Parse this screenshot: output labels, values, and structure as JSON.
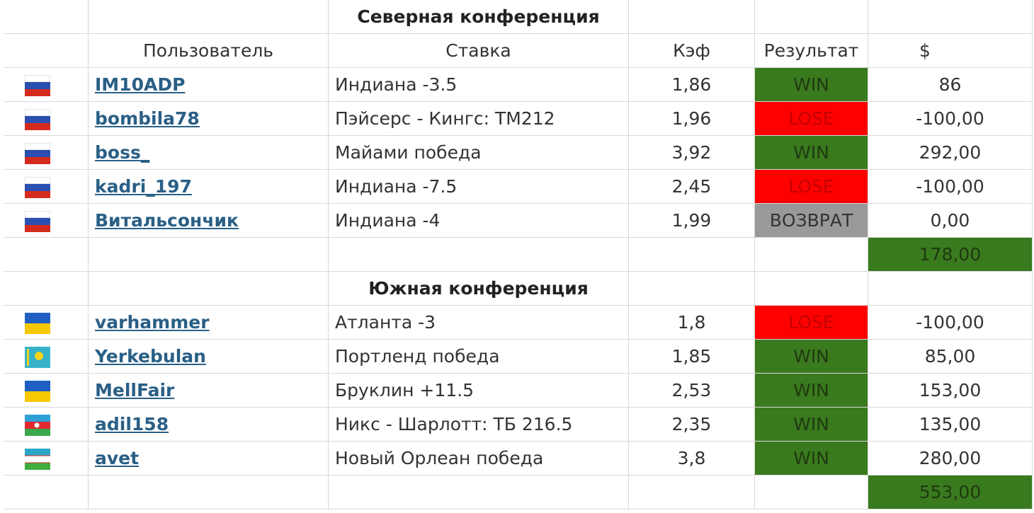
{
  "columns": [
    "Пользователь",
    "Ставка",
    "Кэф",
    "Результат",
    "$"
  ],
  "sections": [
    {
      "title": "Северная конференция",
      "rows": [
        {
          "user": "IM10ADP",
          "bet": "Индиана -3.5",
          "odds": "1,86",
          "result": "WIN",
          "amount": "86"
        },
        {
          "user": "bombila78",
          "bet": "Пэйсерс - Кингс: ТМ212",
          "odds": "1,96",
          "result": "LOSE",
          "amount": "-100,00"
        },
        {
          "user": "boss_",
          "bet": "Майами победа",
          "odds": "3,92",
          "result": "WIN",
          "amount": "292,00"
        },
        {
          "user": "kadri_197",
          "bet": "Индиана -7.5",
          "odds": "2,45",
          "result": "LOSE",
          "amount": "-100,00"
        },
        {
          "user": "Витальсончик",
          "bet": "Индиана -4",
          "odds": "1,99",
          "result": "ВОЗВРАТ",
          "amount": "0,00"
        }
      ],
      "total": "178,00"
    },
    {
      "title": "Южная конференция",
      "rows": [
        {
          "user": "varhammer",
          "bet": "Атланта -3",
          "odds": "1,8",
          "result": "LOSE",
          "amount": "-100,00"
        },
        {
          "user": "Yerkebulan",
          "bet": "Портленд победа",
          "odds": "1,85",
          "result": "WIN",
          "amount": "85,00"
        },
        {
          "user": "MellFair",
          "bet": "Бруклин +11.5",
          "odds": "2,53",
          "result": "WIN",
          "amount": "153,00"
        },
        {
          "user": "adil158",
          "bet": "Никс - Шарлотт: ТБ 216.5",
          "odds": "2,35",
          "result": "WIN",
          "amount": "135,00"
        },
        {
          "user": "avet",
          "bet": "Новый Орлеан победа",
          "odds": "3,8",
          "result": "WIN",
          "amount": "280,00"
        }
      ],
      "total": "553,00"
    }
  ]
}
